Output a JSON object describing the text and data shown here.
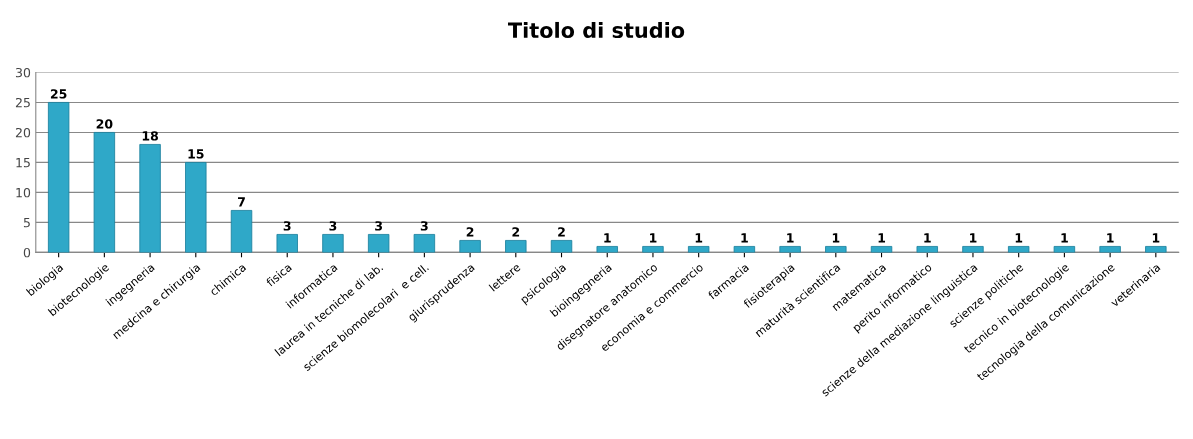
{
  "chart_data": {
    "type": "bar",
    "title": "Titolo di studio",
    "categories": [
      "biologia",
      "biotecnologie",
      "ingegneria",
      "medcina e chirurgia",
      "chimica",
      "fisica",
      "informatica",
      "laurea in tecniche di lab.",
      "scienze biomolecolari  e cell.",
      "giurisprudenza",
      "lettere",
      "psicologia",
      "bioingegneria",
      "disegnatore anatomico",
      "economia e commercio",
      "farmacia",
      "fisioterapia",
      "maturità scientifica",
      "matematica",
      "perito informatico",
      "scienze della mediazione linguistica",
      "scienze politiche",
      "tecnico in biotecnologie",
      "tecnologia della comunicazione",
      "veterinaria"
    ],
    "values": [
      25,
      20,
      18,
      15,
      7,
      3,
      3,
      3,
      3,
      2,
      2,
      2,
      1,
      1,
      1,
      1,
      1,
      1,
      1,
      1,
      1,
      1,
      1,
      1,
      1
    ],
    "color": "#2fa8c8",
    "ylim": [
      0,
      30
    ],
    "yticks": [
      0,
      5,
      10,
      15,
      20,
      25,
      30
    ],
    "grid": "y",
    "data_labels": true
  }
}
